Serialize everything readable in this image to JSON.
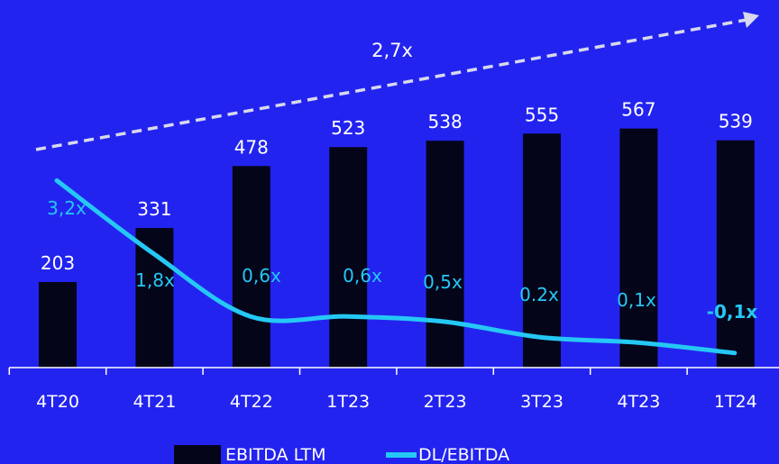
{
  "chart_data": {
    "type": "bar",
    "categories": [
      "4T20",
      "4T21",
      "4T22",
      "1T23",
      "2T23",
      "3T23",
      "4T23",
      "1T24"
    ],
    "series": [
      {
        "name": "EBITDA LTM",
        "type": "bar",
        "values": [
          203,
          331,
          478,
          523,
          538,
          555,
          567,
          539
        ],
        "labels": [
          "203",
          "331",
          "478",
          "523",
          "538",
          "555",
          "567",
          "539"
        ]
      },
      {
        "name": "DL/EBITDA",
        "type": "line",
        "values": [
          3.2,
          1.8,
          0.6,
          0.6,
          0.5,
          0.2,
          0.1,
          -0.1
        ],
        "labels": [
          "3,2x",
          "1,8x",
          "0,6x",
          "0,6x",
          "0,5x",
          "0.2x",
          "0,1x",
          "-0,1x"
        ]
      }
    ],
    "annotation": "2,7x",
    "legend_position": "bottom",
    "colors": {
      "background": "#2323f0",
      "bar": "#05051a",
      "line": "#25c8f5",
      "ratio_text": "#25c8f5",
      "text": "#ffffff",
      "arrow": "#d8d8ee"
    }
  }
}
